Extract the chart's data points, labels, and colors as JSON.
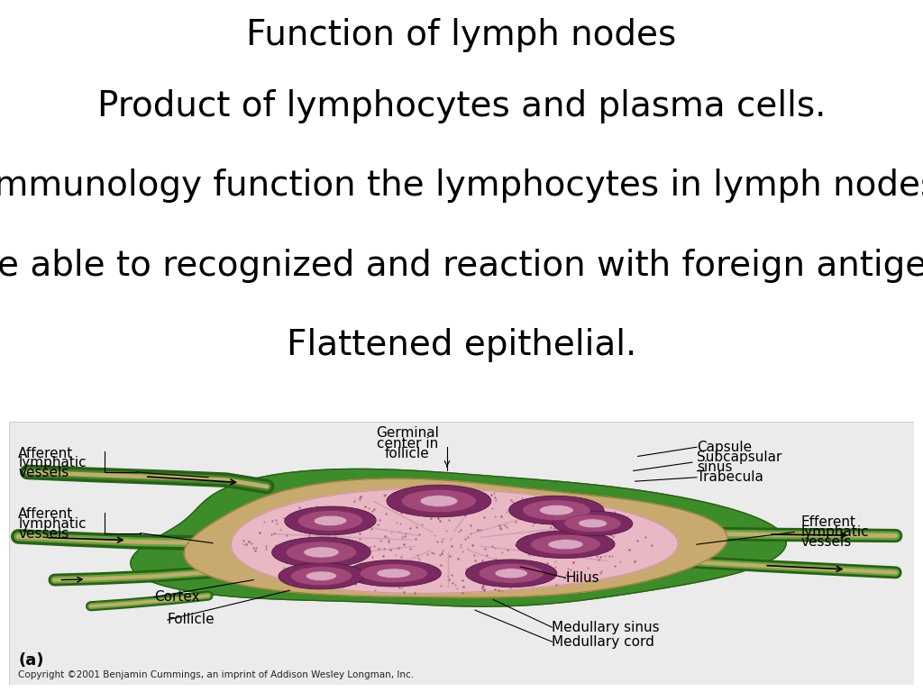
{
  "title_lines": [
    "Function of lymph nodes",
    "Product of lymphocytes and plasma cells.",
    "Immunology function the lymphocytes in lymph nodes",
    "are able to recognized and reaction with foreign antigen.",
    "Flattened epithelial."
  ],
  "title_fontsize": 28,
  "title_color": "#000000",
  "bg_color": "#ffffff",
  "diagram_bg_color": "#ebebeb",
  "fig_width": 10.24,
  "fig_height": 7.68,
  "copyright_text": "Copyright ©2001 Benjamin Cummings, an imprint of Addison Wesley Longman, Inc.",
  "label_fontsize": 11,
  "green_outer": "#3d8c2a",
  "green_dark": "#2a6018",
  "green_mid": "#5aaa38",
  "beige": "#c8a96e",
  "beige_dark": "#a07840",
  "pink": "#e8b8c4",
  "pink_dark": "#d090a0",
  "purple_dark": "#7a2a60",
  "purple_mid": "#a04878",
  "purple_light": "#c890b0",
  "dot_color": "#9a5070"
}
